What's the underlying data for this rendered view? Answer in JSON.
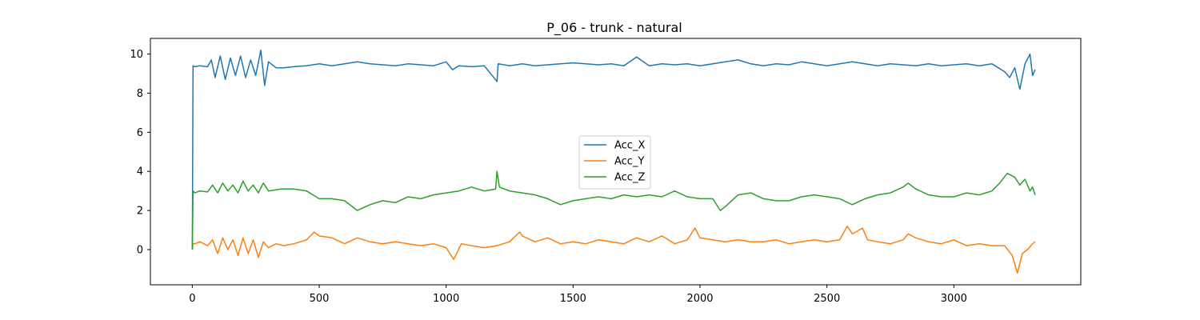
{
  "chart_data": {
    "type": "line",
    "title": "P_06 - trunk - natural",
    "xlabel": "",
    "ylabel": "",
    "xlim": [
      -165,
      3500
    ],
    "ylim": [
      -1.8,
      10.8
    ],
    "xticks": [
      0,
      500,
      1000,
      1500,
      2000,
      2500,
      3000
    ],
    "yticks": [
      0,
      2,
      4,
      6,
      8,
      10
    ],
    "grid": false,
    "legend_position": "center",
    "series": [
      {
        "name": "Acc_X",
        "color": "#1f77b4",
        "x": [
          0,
          3,
          10,
          30,
          60,
          75,
          90,
          110,
          130,
          150,
          170,
          190,
          210,
          230,
          250,
          270,
          285,
          300,
          330,
          360,
          400,
          450,
          500,
          550,
          600,
          650,
          700,
          750,
          800,
          850,
          900,
          950,
          1000,
          1025,
          1050,
          1100,
          1150,
          1200,
          1205,
          1250,
          1300,
          1350,
          1400,
          1450,
          1500,
          1550,
          1600,
          1650,
          1700,
          1750,
          1800,
          1850,
          1900,
          1950,
          2000,
          2050,
          2100,
          2150,
          2200,
          2250,
          2300,
          2350,
          2400,
          2450,
          2500,
          2550,
          2600,
          2650,
          2700,
          2750,
          2800,
          2850,
          2900,
          2950,
          3000,
          3050,
          3100,
          3150,
          3200,
          3220,
          3240,
          3260,
          3280,
          3300,
          3310,
          3320
        ],
        "y": [
          0.0,
          9.4,
          9.35,
          9.4,
          9.35,
          9.7,
          8.8,
          9.9,
          8.7,
          9.8,
          8.9,
          9.9,
          8.8,
          9.7,
          8.9,
          10.2,
          8.4,
          9.6,
          9.3,
          9.3,
          9.35,
          9.4,
          9.5,
          9.4,
          9.5,
          9.6,
          9.5,
          9.45,
          9.4,
          9.5,
          9.45,
          9.4,
          9.6,
          9.2,
          9.4,
          9.35,
          9.4,
          8.6,
          9.5,
          9.4,
          9.5,
          9.4,
          9.45,
          9.5,
          9.55,
          9.5,
          9.45,
          9.5,
          9.4,
          9.85,
          9.4,
          9.5,
          9.45,
          9.5,
          9.4,
          9.5,
          9.6,
          9.7,
          9.5,
          9.4,
          9.5,
          9.45,
          9.6,
          9.5,
          9.4,
          9.5,
          9.6,
          9.5,
          9.4,
          9.5,
          9.45,
          9.4,
          9.5,
          9.4,
          9.45,
          9.5,
          9.4,
          9.5,
          9.1,
          8.8,
          9.3,
          8.2,
          9.5,
          10.0,
          8.9,
          9.2
        ]
      },
      {
        "name": "Acc_Y",
        "color": "#ff7f0e",
        "x": [
          0,
          3,
          10,
          30,
          60,
          80,
          100,
          120,
          140,
          160,
          180,
          200,
          220,
          240,
          260,
          280,
          300,
          330,
          360,
          400,
          450,
          480,
          500,
          550,
          600,
          650,
          700,
          750,
          800,
          850,
          900,
          950,
          1000,
          1030,
          1060,
          1100,
          1150,
          1200,
          1250,
          1290,
          1300,
          1350,
          1400,
          1450,
          1500,
          1550,
          1600,
          1650,
          1700,
          1750,
          1800,
          1850,
          1900,
          1950,
          1980,
          2000,
          2050,
          2100,
          2150,
          2200,
          2250,
          2300,
          2350,
          2400,
          2450,
          2500,
          2550,
          2580,
          2600,
          2640,
          2660,
          2700,
          2750,
          2800,
          2820,
          2850,
          2900,
          2950,
          3000,
          3050,
          3100,
          3150,
          3200,
          3230,
          3250,
          3270,
          3290,
          3310,
          3320
        ],
        "y": [
          0.0,
          0.3,
          0.3,
          0.4,
          0.2,
          0.5,
          -0.2,
          0.6,
          0.0,
          0.5,
          -0.3,
          0.6,
          -0.2,
          0.5,
          -0.4,
          0.4,
          0.1,
          0.3,
          0.2,
          0.3,
          0.5,
          0.9,
          0.7,
          0.6,
          0.3,
          0.6,
          0.4,
          0.3,
          0.4,
          0.3,
          0.2,
          0.3,
          0.1,
          -0.5,
          0.3,
          0.2,
          0.1,
          0.2,
          0.4,
          0.9,
          0.7,
          0.4,
          0.6,
          0.3,
          0.4,
          0.3,
          0.5,
          0.4,
          0.3,
          0.6,
          0.4,
          0.7,
          0.3,
          0.5,
          1.1,
          0.6,
          0.5,
          0.4,
          0.5,
          0.4,
          0.4,
          0.5,
          0.3,
          0.4,
          0.5,
          0.4,
          0.5,
          1.2,
          0.8,
          1.1,
          0.5,
          0.4,
          0.3,
          0.5,
          0.8,
          0.6,
          0.4,
          0.3,
          0.5,
          0.2,
          0.3,
          0.2,
          0.2,
          -0.3,
          -1.2,
          -0.2,
          0.0,
          0.3,
          0.4
        ]
      },
      {
        "name": "Acc_Z",
        "color": "#2ca02c",
        "x": [
          0,
          3,
          10,
          30,
          60,
          80,
          100,
          120,
          140,
          160,
          180,
          200,
          220,
          240,
          260,
          280,
          300,
          350,
          400,
          450,
          500,
          550,
          600,
          650,
          700,
          750,
          800,
          850,
          900,
          950,
          1000,
          1050,
          1100,
          1150,
          1195,
          1200,
          1210,
          1250,
          1300,
          1350,
          1400,
          1450,
          1500,
          1550,
          1600,
          1650,
          1700,
          1750,
          1800,
          1850,
          1900,
          1950,
          2000,
          2050,
          2080,
          2100,
          2150,
          2200,
          2250,
          2300,
          2350,
          2400,
          2450,
          2500,
          2550,
          2600,
          2650,
          2700,
          2750,
          2800,
          2820,
          2850,
          2900,
          2950,
          3000,
          3050,
          3100,
          3150,
          3180,
          3210,
          3240,
          3260,
          3280,
          3300,
          3310,
          3320
        ],
        "y": [
          0.0,
          3.0,
          2.9,
          3.0,
          2.95,
          3.3,
          2.9,
          3.4,
          3.0,
          3.3,
          2.9,
          3.5,
          3.0,
          3.3,
          2.9,
          3.4,
          3.0,
          3.1,
          3.1,
          3.0,
          2.6,
          2.6,
          2.5,
          2.0,
          2.3,
          2.5,
          2.4,
          2.7,
          2.6,
          2.8,
          2.9,
          3.0,
          3.2,
          3.0,
          3.1,
          4.0,
          3.2,
          3.0,
          2.9,
          2.8,
          2.6,
          2.3,
          2.5,
          2.6,
          2.7,
          2.6,
          2.8,
          2.7,
          2.8,
          2.7,
          3.0,
          2.7,
          2.6,
          2.6,
          2.0,
          2.2,
          2.8,
          2.9,
          2.6,
          2.5,
          2.5,
          2.7,
          2.8,
          2.7,
          2.6,
          2.3,
          2.6,
          2.8,
          2.9,
          3.2,
          3.4,
          3.1,
          2.8,
          2.7,
          2.7,
          2.9,
          2.8,
          3.0,
          3.4,
          3.9,
          3.7,
          3.3,
          3.6,
          3.0,
          3.2,
          2.8
        ]
      }
    ]
  }
}
